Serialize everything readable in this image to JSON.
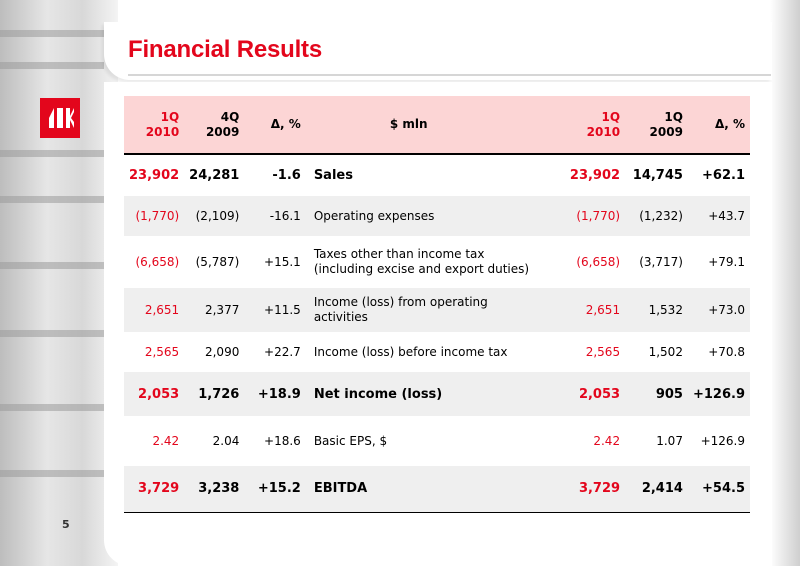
{
  "title": "Financial Results",
  "page_number": "5",
  "logo_text": "ЛУК",
  "colors": {
    "accent": "#e3061c",
    "header_fill": "#fcd5d5",
    "row_shade": "#efefef"
  },
  "table": {
    "header": {
      "c1": [
        "1Q",
        "2010"
      ],
      "c2": [
        "4Q",
        "2009"
      ],
      "c3": "Δ, %",
      "mid": "$ mln",
      "c4": [
        "1Q",
        "2010"
      ],
      "c5": [
        "1Q",
        "2009"
      ],
      "c6": "Δ, %"
    },
    "rows": [
      {
        "c1": "23,902",
        "c2": "24,281",
        "c3": "-1.6",
        "label": [
          "Sales"
        ],
        "c4": "23,902",
        "c5": "14,745",
        "c6": "+62.1"
      },
      {
        "c1": "(1,770)",
        "c2": "(2,109)",
        "c3": "-16.1",
        "label": [
          "Operating expenses"
        ],
        "c4": "(1,770)",
        "c5": "(1,232)",
        "c6": "+43.7"
      },
      {
        "c1": "(6,658)",
        "c2": "(5,787)",
        "c3": "+15.1",
        "label": [
          "Taxes other than income tax",
          "(including excise and export duties)"
        ],
        "c4": "(6,658)",
        "c5": "(3,717)",
        "c6": "+79.1"
      },
      {
        "c1": "2,651",
        "c2": "2,377",
        "c3": "+11.5",
        "label": [
          "Income (loss) from operating",
          "activities"
        ],
        "c4": "2,651",
        "c5": "1,532",
        "c6": "+73.0"
      },
      {
        "c1": "2,565",
        "c2": "2,090",
        "c3": "+22.7",
        "label": [
          "Income (loss) before income tax"
        ],
        "c4": "2,565",
        "c5": "1,502",
        "c6": "+70.8"
      },
      {
        "c1": "2,053",
        "c2": "1,726",
        "c3": "+18.9",
        "label": [
          "Net income (loss)"
        ],
        "c4": "2,053",
        "c5": "905",
        "c6": "+126.9"
      },
      {
        "c1": "2.42",
        "c2": "2.04",
        "c3": "+18.6",
        "label": [
          "Basic EPS, $"
        ],
        "c4": "2.42",
        "c5": "1.07",
        "c6": "+126.9"
      },
      {
        "c1": "3,729",
        "c2": "3,238",
        "c3": "+15.2",
        "label": [
          "EBITDA"
        ],
        "c4": "3,729",
        "c5": "2,414",
        "c6": "+54.5"
      }
    ]
  }
}
